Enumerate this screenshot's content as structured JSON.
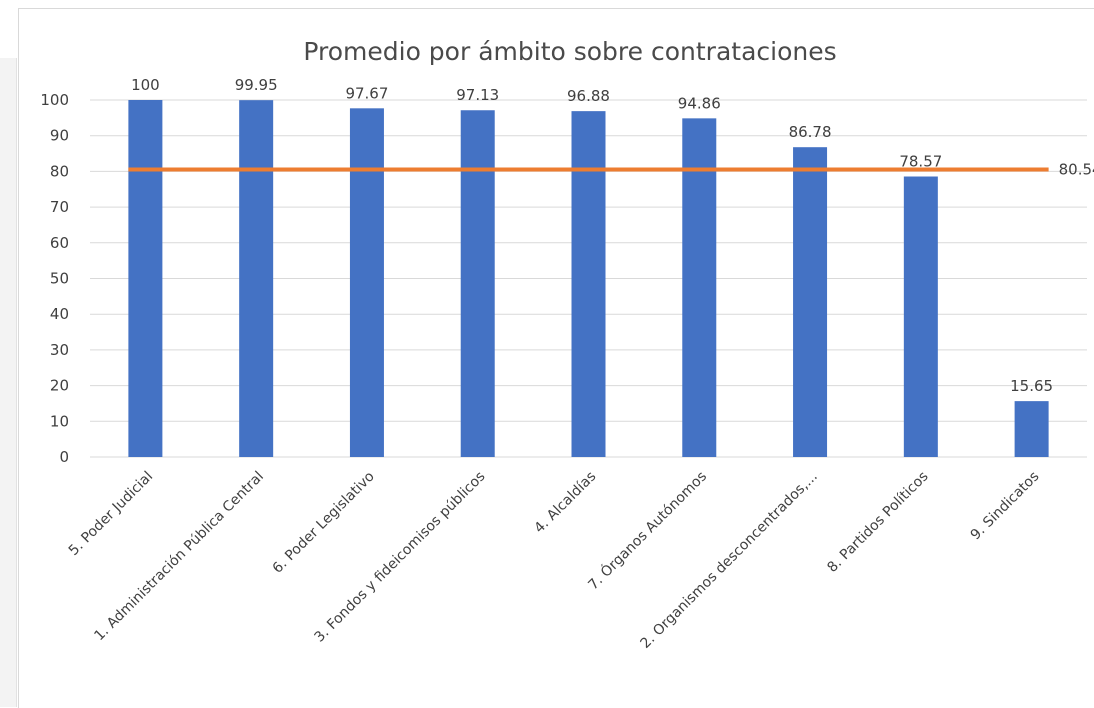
{
  "chart_data": {
    "type": "bar",
    "title": "Promedio por ámbito sobre contrataciones",
    "xlabel": "",
    "ylabel": "",
    "ylim": [
      0,
      100
    ],
    "yticks": [
      0,
      10,
      20,
      30,
      40,
      50,
      60,
      70,
      80,
      90,
      100
    ],
    "grid": true,
    "categories": [
      "5. Poder Judicial",
      "1. Administración Pública Central",
      "6. Poder Legislativo",
      "3. Fondos y fideicomisos públicos",
      "4. Alcaldías",
      "7. Órganos Autónomos",
      "2. Organismos desconcentrados,...",
      "8. Partidos Políticos",
      "9. Sindicatos"
    ],
    "values": [
      100,
      99.95,
      97.67,
      97.13,
      96.88,
      94.86,
      86.78,
      78.57,
      15.65
    ],
    "data_labels": [
      "100",
      "99.95",
      "97.67",
      "97.13",
      "96.88",
      "94.86",
      "86.78",
      "78.57",
      "15.65"
    ],
    "reference_line": {
      "value": 80.54,
      "label": "80.54"
    },
    "colors": {
      "bar": "#4472c4",
      "reference_line": "#ed7d31",
      "grid": "#d9d9d9"
    }
  }
}
